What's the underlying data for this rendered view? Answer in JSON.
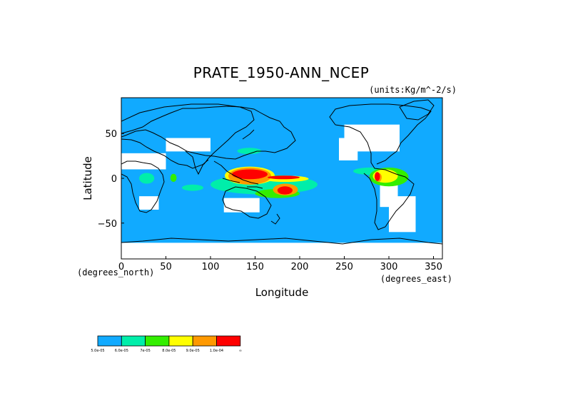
{
  "chart_data": {
    "type": "heatmap",
    "title": "PRATE_1950-ANN_NCEP",
    "units_note": "(units:Kg/m^-2/s)",
    "xlabel": "Longitude",
    "ylabel": "Latitude",
    "x_unit_label": "(degrees_east)",
    "y_unit_label": "(degrees_north)",
    "xlim": [
      0,
      360
    ],
    "ylim": [
      -90,
      90
    ],
    "x_ticks": [
      0,
      50,
      100,
      150,
      200,
      250,
      300,
      350
    ],
    "y_ticks": [
      50,
      0,
      -50
    ],
    "x_tick_labels": [
      "0",
      "50",
      "100",
      "150",
      "200",
      "250",
      "300",
      "350"
    ],
    "y_tick_labels": [
      "50",
      "0",
      "−50"
    ],
    "legend": {
      "placement": "bottom-left",
      "colors": [
        "#11aaff",
        "#00eeaa",
        "#33ee00",
        "#ffff00",
        "#ff9900",
        "#ff0000"
      ],
      "labels": [
        "5.0e-05",
        "6.0e-05",
        "7e-05",
        "8.0e-05",
        "9.0e-05",
        "1.0e-04",
        "∞"
      ]
    },
    "background_color": "#11aaff",
    "no_data_color": "#ffffff",
    "regions": [
      {
        "level": 0,
        "lon": [
          174,
          191
        ],
        "lat": [
          -14,
          3
        ]
      },
      {
        "level": 0,
        "lon": [
          300,
          320
        ],
        "lat": [
          30,
          14
        ]
      },
      {
        "level": 1,
        "lon": [
          260,
          297
        ],
        "lat": [
          12,
          4
        ]
      },
      {
        "level": 1,
        "lon": [
          20,
          37
        ],
        "lat": [
          6,
          -6
        ]
      },
      {
        "level": 1,
        "lon": [
          68,
          92
        ],
        "lat": [
          -7,
          -14
        ]
      },
      {
        "level": 1,
        "lon": [
          130,
          157
        ],
        "lat": [
          34,
          27
        ]
      },
      {
        "level": 1,
        "lon": [
          100,
          220
        ],
        "lat": [
          4,
          -18
        ]
      },
      {
        "level": 2,
        "lon": [
          150,
          200
        ],
        "lat": [
          -12,
          -22
        ]
      },
      {
        "level": 2,
        "lon": [
          278,
          322
        ],
        "lat": [
          12,
          -9
        ]
      },
      {
        "level": 2,
        "lon": [
          55,
          62
        ],
        "lat": [
          5,
          -4
        ]
      },
      {
        "level": 3,
        "lon": [
          116,
          172
        ],
        "lat": [
          13,
          -7
        ]
      },
      {
        "level": 3,
        "lon": [
          158,
          210
        ],
        "lat": [
          3,
          -4
        ]
      },
      {
        "level": 3,
        "lon": [
          282,
          310
        ],
        "lat": [
          10,
          -5
        ]
      },
      {
        "level": 4,
        "lon": [
          120,
          168
        ],
        "lat": [
          12,
          -7
        ]
      },
      {
        "level": 4,
        "lon": [
          170,
          198
        ],
        "lat": [
          -6,
          -19
        ]
      },
      {
        "level": 4,
        "lon": [
          285,
          292
        ],
        "lat": [
          6,
          -4
        ]
      },
      {
        "level": 5,
        "lon": [
          124,
          164
        ],
        "lat": [
          10,
          -1
        ]
      },
      {
        "level": 5,
        "lon": [
          164,
          200
        ],
        "lat": [
          3,
          -1
        ]
      },
      {
        "level": 5,
        "lon": [
          175,
          192
        ],
        "lat": [
          -9,
          -18
        ]
      },
      {
        "level": 5,
        "lon": [
          284,
          290
        ],
        "lat": [
          7,
          -3
        ]
      }
    ],
    "no_data_areas": [
      {
        "lon": [
          0,
          360
        ],
        "lat": [
          -72,
          -90
        ]
      },
      {
        "lon": [
          250,
          312
        ],
        "lat": [
          60,
          30
        ]
      },
      {
        "lon": [
          244,
          265
        ],
        "lat": [
          45,
          20
        ]
      },
      {
        "lon": [
          300,
          330
        ],
        "lat": [
          -20,
          -60
        ]
      },
      {
        "lon": [
          290,
          310
        ],
        "lat": [
          -5,
          -32
        ]
      },
      {
        "lon": [
          0,
          50
        ],
        "lat": [
          28,
          10
        ]
      },
      {
        "lon": [
          50,
          100
        ],
        "lat": [
          45,
          30
        ]
      },
      {
        "lon": [
          20,
          42
        ],
        "lat": [
          -20,
          -35
        ]
      },
      {
        "lon": [
          115,
          155
        ],
        "lat": [
          -22,
          -38
        ]
      }
    ]
  }
}
